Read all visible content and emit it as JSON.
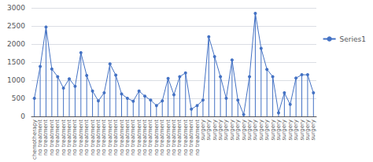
{
  "chart_data": {
    "type": "lollipop",
    "categories": [
      "chemotherapy",
      "no treatment",
      "no treatment",
      "no treatment",
      "no treatment",
      "no treatment",
      "no treatment",
      "no treatment",
      "no treatment",
      "no treatment",
      "no treatment",
      "no treatment",
      "no treatment",
      "no treatment",
      "no treatment",
      "no treatment",
      "no treatment",
      "no treatment",
      "no treatment",
      "no treatment",
      "no treatment",
      "no treatment",
      "no treatment",
      "no treatment",
      "no treatment",
      "no treatment",
      "no treatment",
      "no treatment",
      "no treatment",
      "surgery",
      "surgery",
      "surgery",
      "surgery",
      "surgery",
      "surgery",
      "surgery",
      "surgery",
      "surgery",
      "surgery",
      "surgery",
      "surgery",
      "surgery",
      "surgery",
      "surgery",
      "surgery",
      "surgery",
      "surgery",
      "surgery",
      "surgery"
    ],
    "series": [
      {
        "name": "Series1",
        "color": "#4472C4",
        "values": [
          500,
          1380,
          2470,
          1310,
          1100,
          780,
          1040,
          830,
          1760,
          1130,
          700,
          430,
          650,
          1450,
          1140,
          620,
          500,
          420,
          700,
          560,
          450,
          300,
          430,
          1050,
          600,
          1100,
          1200,
          200,
          300,
          450,
          2200,
          1650,
          1100,
          500,
          1560,
          450,
          50,
          1100,
          2850,
          1880,
          1300,
          1100,
          100,
          650,
          330,
          1060,
          1150,
          1150,
          650
        ]
      }
    ],
    "ylim": [
      0,
      3000
    ],
    "yticks": [
      0,
      500,
      1000,
      1500,
      2000,
      2500,
      3000
    ],
    "grid": true,
    "legend": "right",
    "marker": "circle"
  }
}
